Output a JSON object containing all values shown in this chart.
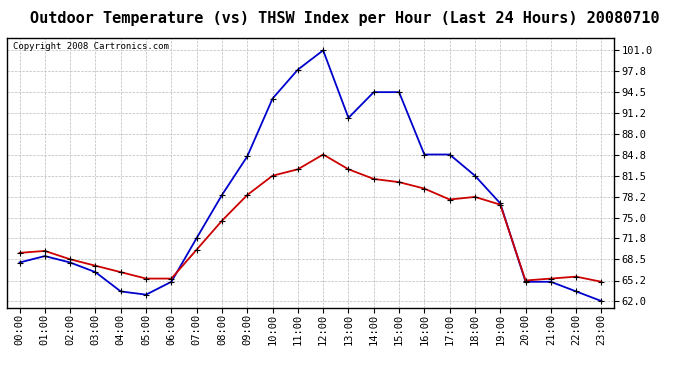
{
  "title": "Outdoor Temperature (vs) THSW Index per Hour (Last 24 Hours) 20080710",
  "copyright": "Copyright 2008 Cartronics.com",
  "hours": [
    "00:00",
    "01:00",
    "02:00",
    "03:00",
    "04:00",
    "05:00",
    "06:00",
    "07:00",
    "08:00",
    "09:00",
    "10:00",
    "11:00",
    "12:00",
    "13:00",
    "14:00",
    "15:00",
    "16:00",
    "17:00",
    "18:00",
    "19:00",
    "20:00",
    "21:00",
    "22:00",
    "23:00"
  ],
  "temp_red": [
    69.5,
    69.8,
    68.5,
    67.5,
    66.5,
    65.5,
    65.5,
    70.0,
    74.5,
    78.5,
    81.5,
    82.5,
    84.8,
    82.5,
    81.0,
    80.5,
    79.5,
    77.8,
    78.2,
    77.0,
    65.2,
    65.5,
    65.8,
    65.0
  ],
  "thsw_blue": [
    68.0,
    69.0,
    68.0,
    66.5,
    63.5,
    63.0,
    65.0,
    71.8,
    78.5,
    84.5,
    93.5,
    98.0,
    101.0,
    90.5,
    94.5,
    94.5,
    84.8,
    84.8,
    81.5,
    77.2,
    65.0,
    65.0,
    63.5,
    62.0
  ],
  "y_ticks": [
    62.0,
    65.2,
    68.5,
    71.8,
    75.0,
    78.2,
    81.5,
    84.8,
    88.0,
    91.2,
    94.5,
    97.8,
    101.0
  ],
  "y_min": 61.0,
  "y_max": 103.0,
  "bg_color": "#ffffff",
  "plot_bg_color": "#ffffff",
  "grid_color": "#bbbbbb",
  "red_color": "#cc0000",
  "blue_color": "#0000cc",
  "title_fontsize": 11,
  "copyright_fontsize": 6.5,
  "tick_fontsize": 7.5
}
